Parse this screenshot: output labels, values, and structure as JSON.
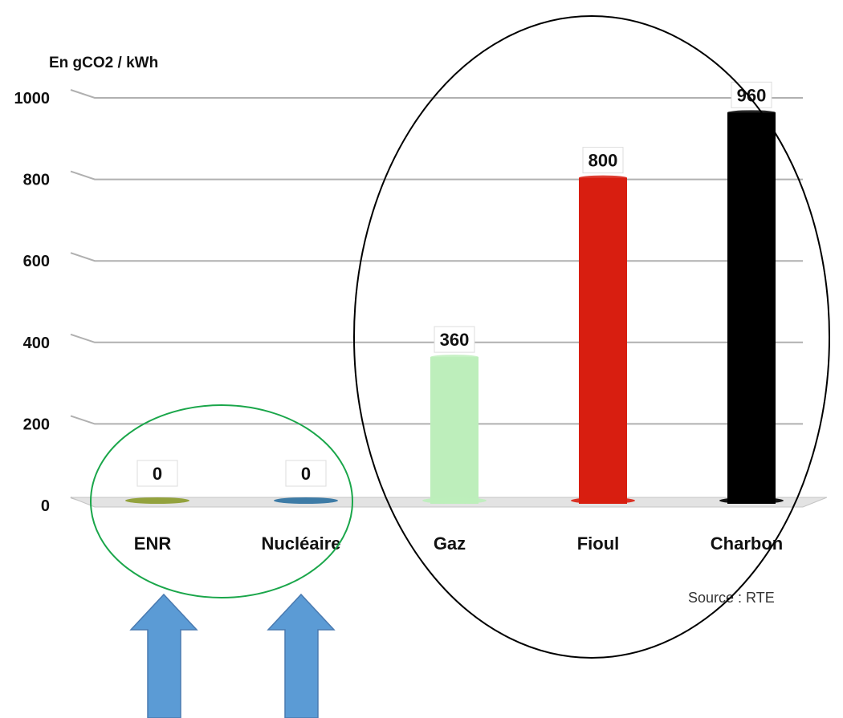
{
  "chart_data": {
    "type": "bar",
    "unit_label": "En gCO2 / kWh",
    "categories": [
      "ENR",
      "Nucléaire",
      "Gaz",
      "Fioul",
      "Charbon"
    ],
    "values": [
      0,
      0,
      360,
      800,
      960
    ],
    "value_labels": [
      "0",
      "0",
      "360",
      "800",
      "960"
    ],
    "bar_colors": [
      "#8a9a2a",
      "#2a6f9e",
      "#bdeebb",
      "#d81e10",
      "#000000"
    ],
    "ylim": [
      0,
      1000
    ],
    "yticks": [
      0,
      200,
      400,
      600,
      800,
      1000
    ],
    "ytick_labels": [
      "0",
      "200",
      "400",
      "600",
      "800",
      "1000"
    ],
    "grid": true,
    "source": "Source : RTE"
  },
  "annotations": {
    "green_ellipse_color": "#1aa64a",
    "black_ellipse_color": "#000000",
    "arrow_color": "#5b9bd5",
    "arrow_count": 2
  }
}
